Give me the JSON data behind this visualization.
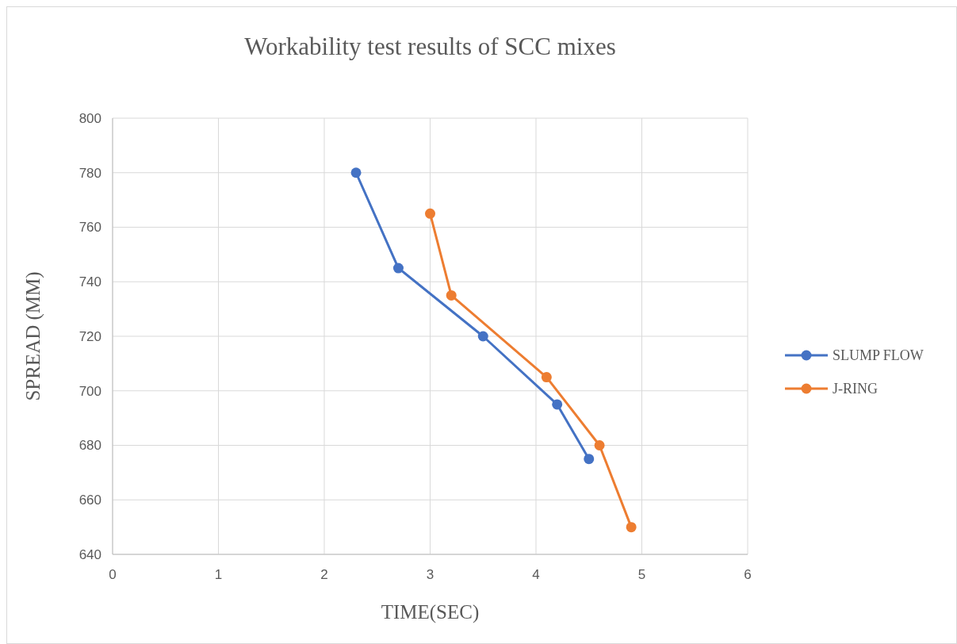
{
  "chart_data": {
    "type": "line",
    "title": "Workability test results of SCC mixes",
    "xlabel": "TIME(SEC)",
    "ylabel": "SPREAD (MM)",
    "xlim": [
      0,
      6
    ],
    "xticks": [
      0,
      1,
      2,
      3,
      4,
      5,
      6
    ],
    "ylim": [
      640,
      800
    ],
    "yticks": [
      640,
      660,
      680,
      700,
      720,
      740,
      760,
      780,
      800
    ],
    "grid": true,
    "legend": "right",
    "marker": "circle",
    "series": [
      {
        "name": "SLUMP FLOW",
        "color": "#4472c4",
        "x": [
          2.3,
          2.7,
          3.5,
          4.2,
          4.5
        ],
        "values": [
          780,
          745,
          720,
          695,
          675
        ]
      },
      {
        "name": "J-RING",
        "color": "#ed7d31",
        "x": [
          3,
          3.2,
          4.1,
          4.6,
          4.9
        ],
        "values": [
          765,
          735,
          705,
          680,
          650
        ]
      }
    ]
  }
}
